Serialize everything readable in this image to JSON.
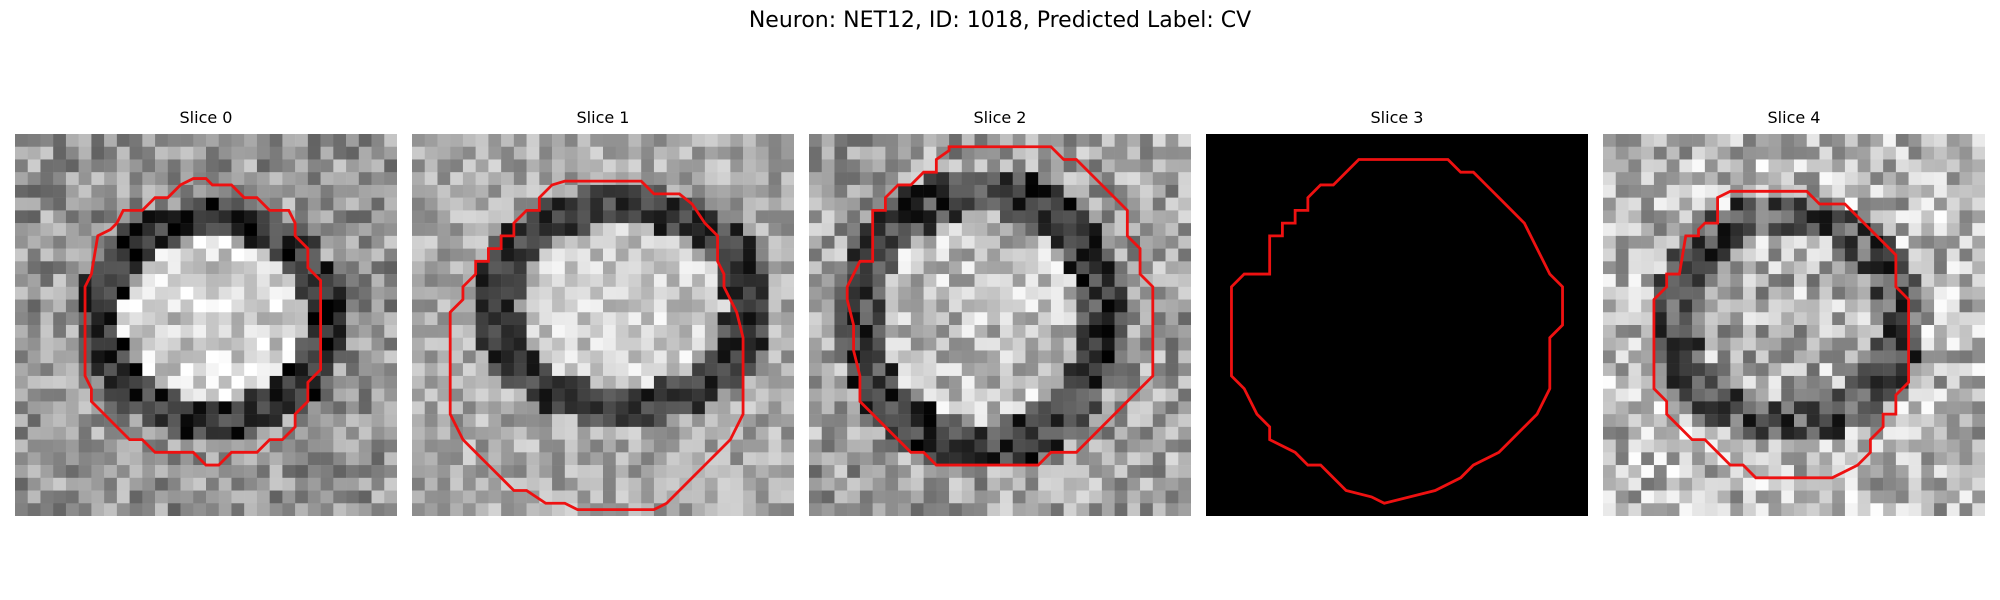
{
  "figure": {
    "title": "Neuron: NET12, ID: 1018, Predicted Label: CV",
    "contour_color": "#ee1111"
  },
  "slices": [
    {
      "label": "Slice 0",
      "image": "grayscale microscopy patch with bright round cell body surrounded by dark ring"
    },
    {
      "label": "Slice 1",
      "image": "grayscale microscopy patch with bright elongated cell body"
    },
    {
      "label": "Slice 2",
      "image": "grayscale microscopy patch with textured cell body and dark ring"
    },
    {
      "label": "Slice 3",
      "image": "all-black patch"
    },
    {
      "label": "Slice 4",
      "image": "grayscale noisy patch with dark ring around cell"
    }
  ]
}
